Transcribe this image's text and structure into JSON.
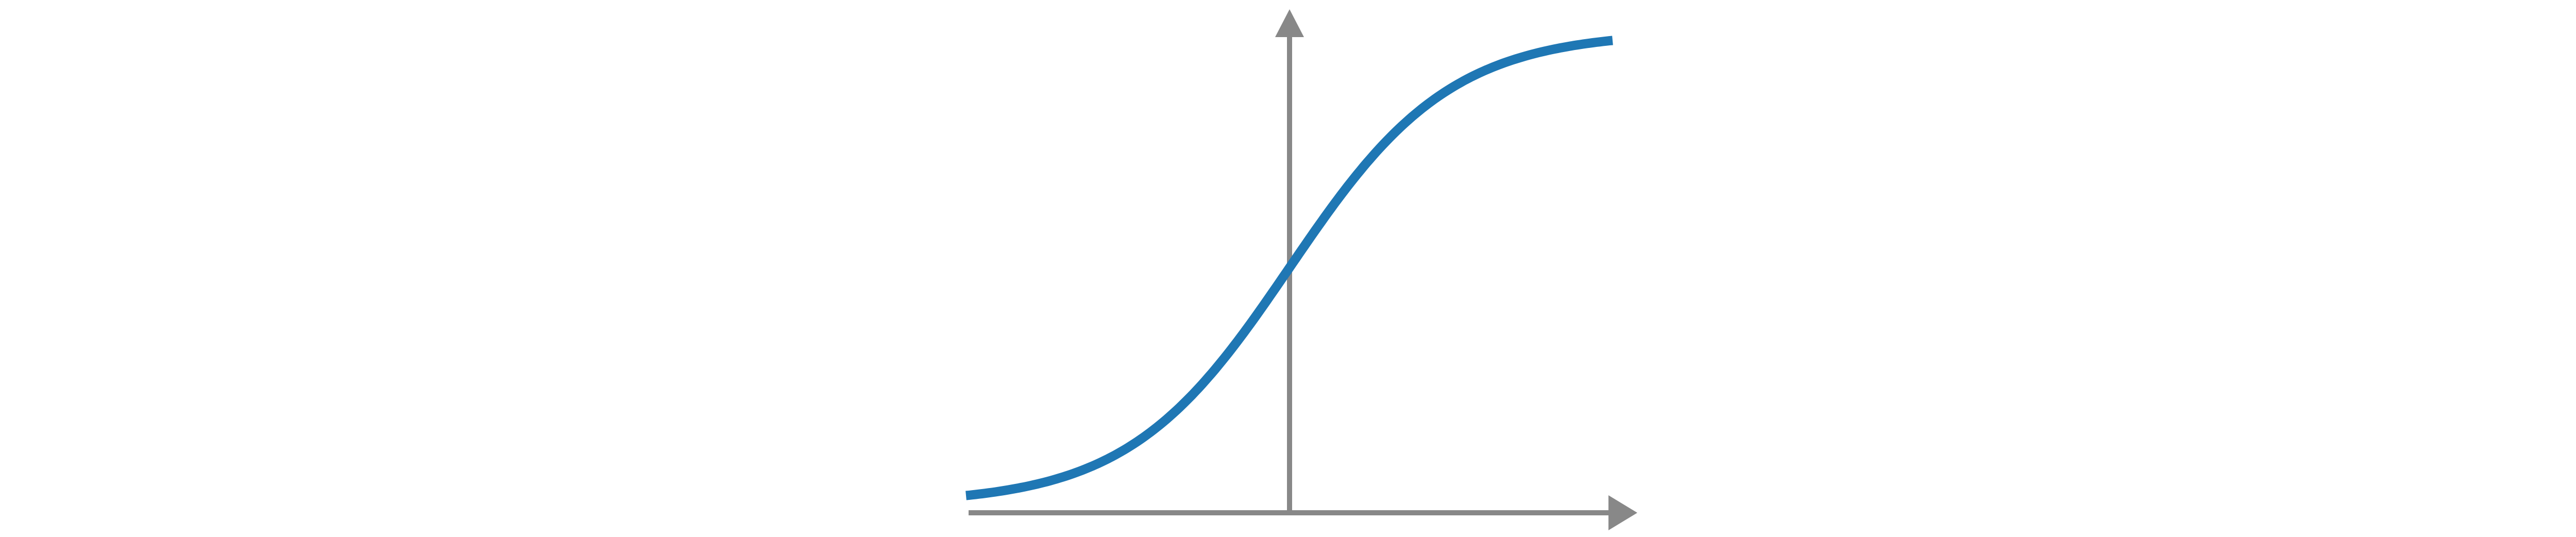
{
  "chart_data": {
    "type": "line",
    "title": "",
    "xlabel": "",
    "ylabel": "",
    "grid": false,
    "legend": "none",
    "axes_style": "arrows-through-origin",
    "xlim": [
      -1,
      1
    ],
    "ylim": [
      0,
      1
    ],
    "series": [
      {
        "color": "#1f77b4",
        "x": [
          -1.0,
          -0.75,
          -0.5,
          -0.25,
          0.0,
          0.25,
          0.5,
          0.75,
          1.0
        ],
        "y": [
          0.018,
          0.047,
          0.119,
          0.269,
          0.5,
          0.731,
          0.881,
          0.953,
          0.982
        ]
      }
    ]
  },
  "colors": {
    "curve": "#1f77b4",
    "axes": "#888888",
    "background": "#ffffff"
  }
}
